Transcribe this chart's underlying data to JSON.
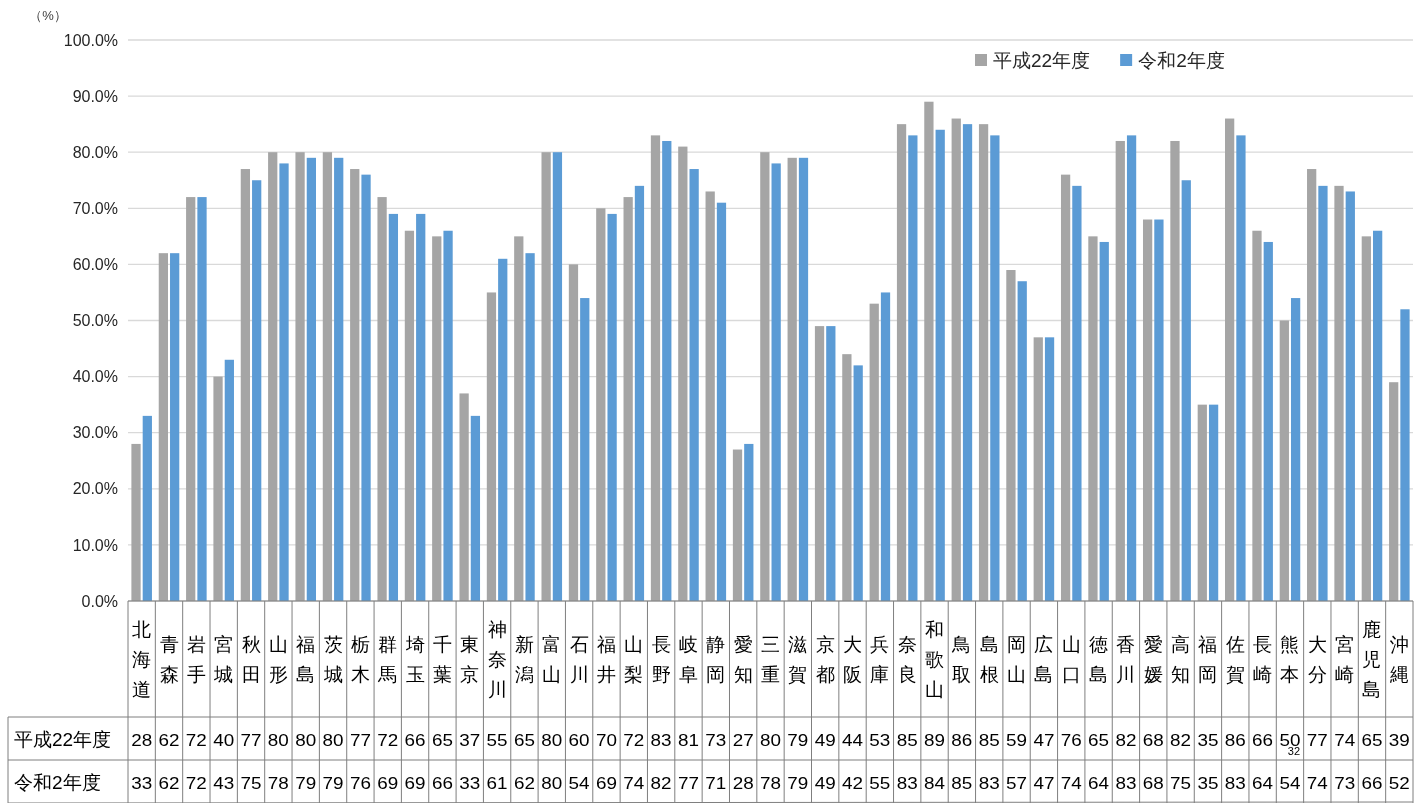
{
  "chart_data": {
    "type": "bar",
    "ylabel": "（%）",
    "categories": [
      "北海道",
      "青森",
      "岩手",
      "宮城",
      "秋田",
      "山形",
      "福島",
      "茨城",
      "栃木",
      "群馬",
      "埼玉",
      "千葉",
      "東京",
      "神奈川",
      "新潟",
      "富山",
      "石川",
      "福井",
      "山梨",
      "長野",
      "岐阜",
      "静岡",
      "愛知",
      "三重",
      "滋賀",
      "京都",
      "大阪",
      "兵庫",
      "奈良",
      "和歌山",
      "鳥取",
      "島根",
      "岡山",
      "広島",
      "山口",
      "徳島",
      "香川",
      "愛媛",
      "高知",
      "福岡",
      "佐賀",
      "長崎",
      "熊本",
      "大分",
      "宮崎",
      "鹿児島",
      "沖縄"
    ],
    "series": [
      {
        "name": "平成22年度",
        "color": "#a5a5a5",
        "values": [
          28,
          62,
          72,
          40,
          77,
          80,
          80,
          80,
          77,
          72,
          66,
          65,
          37,
          55,
          65,
          80,
          60,
          70,
          72,
          83,
          81,
          73,
          27,
          80,
          79,
          49,
          44,
          53,
          85,
          89,
          86,
          85,
          59,
          47,
          76,
          65,
          82,
          68,
          82,
          35,
          86,
          66,
          50,
          77,
          74,
          65,
          39
        ]
      },
      {
        "name": "令和2年度",
        "color": "#5b9bd5",
        "values": [
          33,
          62,
          72,
          43,
          75,
          78,
          79,
          79,
          76,
          69,
          69,
          66,
          33,
          61,
          62,
          80,
          54,
          69,
          74,
          82,
          77,
          71,
          28,
          78,
          79,
          49,
          42,
          55,
          83,
          84,
          85,
          83,
          57,
          47,
          74,
          64,
          83,
          68,
          75,
          35,
          83,
          64,
          54,
          74,
          73,
          66,
          52
        ]
      }
    ],
    "ylim": [
      0,
      100
    ],
    "yticks": [
      {
        "value": 0,
        "label": "0.0%"
      },
      {
        "value": 10,
        "label": "10.0%"
      },
      {
        "value": 20,
        "label": "20.0%"
      },
      {
        "value": 30,
        "label": "30.0%"
      },
      {
        "value": 40,
        "label": "40.0%"
      },
      {
        "value": 50,
        "label": "50.0%"
      },
      {
        "value": 60,
        "label": "60.0%"
      },
      {
        "value": 70,
        "label": "70.0%"
      },
      {
        "value": 80,
        "label": "80.0%"
      },
      {
        "value": 90,
        "label": "90.0%"
      },
      {
        "value": 100,
        "label": "100.0%"
      }
    ],
    "grid": "y",
    "legend": "top right",
    "data_labels": true,
    "annotations": [
      "32"
    ]
  }
}
